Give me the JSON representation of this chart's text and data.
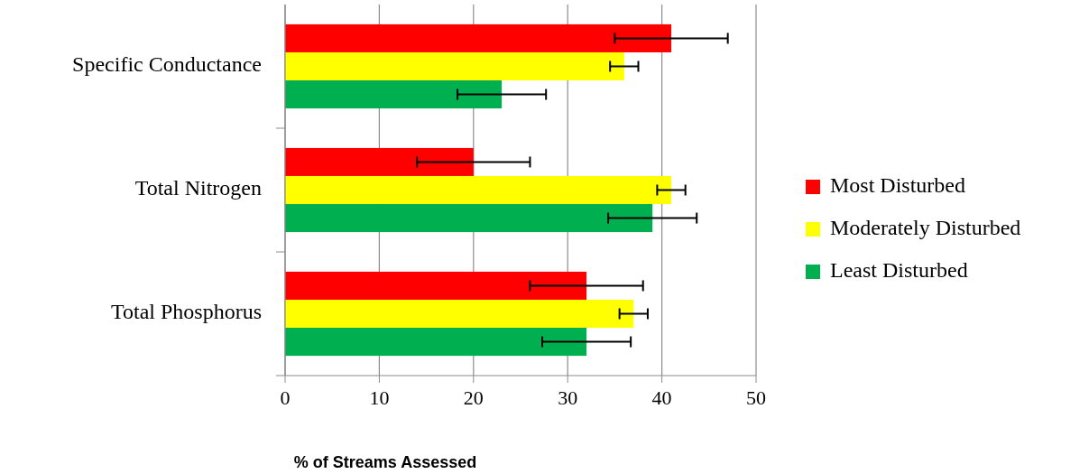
{
  "chart_data": {
    "type": "bar",
    "orientation": "horizontal",
    "xlabel": "% of Streams Assessed",
    "categories": [
      "Specific Conductance",
      "Total Nitrogen",
      "Total Phosphorus"
    ],
    "series": [
      {
        "name": "Most Disturbed",
        "color": "#ff0000",
        "values": [
          41,
          20,
          32
        ],
        "errors": [
          6,
          6,
          6
        ]
      },
      {
        "name": "Moderately Disturbed",
        "color": "#ffff00",
        "values": [
          36,
          41,
          37
        ],
        "errors": [
          1.5,
          1.5,
          1.5
        ]
      },
      {
        "name": "Least Disturbed",
        "color": "#00b050",
        "values": [
          23,
          39,
          32
        ],
        "errors": [
          4.7,
          4.7,
          4.7
        ]
      }
    ],
    "xlim": [
      0,
      50
    ],
    "xticks": [
      0,
      10,
      20,
      30,
      40,
      50
    ],
    "grid": "x",
    "legend": "right"
  }
}
